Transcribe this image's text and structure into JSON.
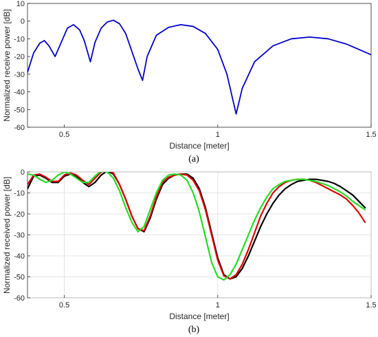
{
  "chart_data": [
    {
      "type": "line",
      "caption": "(a)",
      "xlabel": "Distance [meter]",
      "ylabel": "Normalized receive power [dB]",
      "xlim": [
        0.38,
        1.5
      ],
      "ylim": [
        -60,
        10
      ],
      "xticks": [
        0.5,
        1,
        1.5
      ],
      "xtick_labels": [
        "0.5",
        "1",
        "1.5"
      ],
      "yticks": [
        10,
        0,
        -10,
        -20,
        -30,
        -40,
        -50,
        -60
      ],
      "ytick_labels": [
        "10",
        "0",
        "-10",
        "-20",
        "-30",
        "-40",
        "-50",
        "-60"
      ],
      "grid": false,
      "series": [
        {
          "color": "#0000cc",
          "x": [
            0.38,
            0.4,
            0.42,
            0.435,
            0.45,
            0.47,
            0.49,
            0.51,
            0.53,
            0.55,
            0.565,
            0.575,
            0.585,
            0.6,
            0.62,
            0.64,
            0.66,
            0.68,
            0.7,
            0.72,
            0.74,
            0.755,
            0.77,
            0.8,
            0.84,
            0.88,
            0.92,
            0.96,
            1.0,
            1.03,
            1.05,
            1.06,
            1.08,
            1.12,
            1.18,
            1.24,
            1.3,
            1.36,
            1.42,
            1.5
          ],
          "y": [
            -29,
            -18,
            -12.5,
            -11,
            -14,
            -20,
            -12,
            -4,
            -2,
            -5,
            -11,
            -17,
            -23,
            -12,
            -4,
            -0.5,
            0.5,
            -1.5,
            -7,
            -17,
            -27,
            -33.5,
            -20,
            -8,
            -3.5,
            -2,
            -3,
            -7,
            -16,
            -30,
            -45,
            -52.5,
            -38,
            -23,
            -14,
            -10,
            -9,
            -10,
            -13,
            -19
          ]
        }
      ]
    },
    {
      "type": "line",
      "caption": "(b)",
      "xlabel": "Distance [meter]",
      "ylabel": "Normalized received power [dB]",
      "xlim": [
        0.38,
        1.5
      ],
      "ylim": [
        -60,
        0
      ],
      "xticks": [
        0.5,
        1,
        1.5
      ],
      "xtick_labels": [
        "0.5",
        "1",
        "1.5"
      ],
      "yticks": [
        0,
        -10,
        -20,
        -30,
        -40,
        -50,
        -60
      ],
      "ytick_labels": [
        "0",
        "-10",
        "-20",
        "-30",
        "-40",
        "-50",
        "-60"
      ],
      "grid": true,
      "series": [
        {
          "color": "#000000",
          "x": [
            0.38,
            0.4,
            0.42,
            0.44,
            0.46,
            0.48,
            0.5,
            0.52,
            0.54,
            0.56,
            0.58,
            0.6,
            0.62,
            0.64,
            0.66,
            0.68,
            0.7,
            0.72,
            0.74,
            0.76,
            0.78,
            0.8,
            0.82,
            0.84,
            0.86,
            0.88,
            0.9,
            0.92,
            0.94,
            0.96,
            0.98,
            1.0,
            1.02,
            1.04,
            1.06,
            1.08,
            1.1,
            1.12,
            1.14,
            1.16,
            1.18,
            1.2,
            1.22,
            1.24,
            1.26,
            1.28,
            1.3,
            1.32,
            1.34,
            1.36,
            1.38,
            1.4,
            1.42,
            1.44,
            1.46,
            1.48
          ],
          "y": [
            -8,
            -2,
            -1.5,
            -3,
            -5,
            -5,
            -2,
            -1,
            -2,
            -5,
            -7,
            -5,
            -1.5,
            0.5,
            -1,
            -6,
            -13,
            -21,
            -27,
            -28.5,
            -22,
            -13,
            -6,
            -3,
            -1.5,
            -1,
            -1,
            -3,
            -8,
            -17,
            -29,
            -41,
            -49,
            -51,
            -50,
            -46,
            -40,
            -33,
            -26,
            -20,
            -15,
            -11,
            -8,
            -6,
            -4.5,
            -4,
            -3.5,
            -3.5,
            -4,
            -4.5,
            -5.5,
            -7,
            -9,
            -11,
            -14,
            -17
          ]
        },
        {
          "color": "#e00000",
          "x": [
            0.38,
            0.4,
            0.42,
            0.44,
            0.46,
            0.48,
            0.5,
            0.52,
            0.54,
            0.56,
            0.58,
            0.6,
            0.62,
            0.64,
            0.66,
            0.68,
            0.7,
            0.72,
            0.74,
            0.76,
            0.78,
            0.8,
            0.82,
            0.84,
            0.86,
            0.88,
            0.9,
            0.92,
            0.94,
            0.96,
            0.98,
            1.0,
            1.02,
            1.04,
            1.06,
            1.08,
            1.1,
            1.12,
            1.14,
            1.16,
            1.18,
            1.2,
            1.22,
            1.24,
            1.26,
            1.28,
            1.3,
            1.32,
            1.34,
            1.36,
            1.38,
            1.4,
            1.42,
            1.44,
            1.46,
            1.48
          ],
          "y": [
            -6,
            -1.5,
            -1,
            -2.5,
            -4.5,
            -4.5,
            -1.5,
            -0.5,
            -1.5,
            -4,
            -6,
            -3,
            0,
            1,
            -0.5,
            -6,
            -13,
            -21,
            -27,
            -28,
            -21,
            -12,
            -5,
            -2.5,
            -1.5,
            -1,
            -1.5,
            -4,
            -9,
            -18,
            -30,
            -42,
            -49.5,
            -51,
            -49,
            -44,
            -37,
            -29,
            -21,
            -15,
            -10,
            -7,
            -5,
            -4,
            -3.5,
            -3.5,
            -4,
            -5,
            -6.5,
            -8,
            -9.5,
            -11,
            -13,
            -16,
            -19.5,
            -24
          ]
        },
        {
          "color": "#22dd22",
          "x": [
            0.38,
            0.4,
            0.42,
            0.44,
            0.46,
            0.48,
            0.5,
            0.52,
            0.54,
            0.56,
            0.58,
            0.6,
            0.62,
            0.64,
            0.66,
            0.68,
            0.7,
            0.72,
            0.74,
            0.76,
            0.78,
            0.8,
            0.82,
            0.84,
            0.86,
            0.88,
            0.9,
            0.92,
            0.94,
            0.96,
            0.98,
            1.0,
            1.02,
            1.04,
            1.06,
            1.08,
            1.1,
            1.12,
            1.14,
            1.16,
            1.18,
            1.2,
            1.22,
            1.24,
            1.26,
            1.28,
            1.3,
            1.32,
            1.34,
            1.36,
            1.38,
            1.4,
            1.42,
            1.44,
            1.46,
            1.48
          ],
          "y": [
            -1,
            -1.5,
            -3.5,
            -5,
            -4,
            -1.5,
            0,
            -1,
            -3,
            -5,
            -5,
            -2,
            0.5,
            0,
            -3,
            -9,
            -17,
            -24,
            -28.5,
            -26,
            -18,
            -10,
            -4,
            -1.5,
            -1,
            -1.5,
            -4,
            -10,
            -19,
            -31,
            -43,
            -50,
            -51.5,
            -49,
            -44,
            -37,
            -30,
            -23,
            -17,
            -12,
            -8,
            -6,
            -4.5,
            -4,
            -3.5,
            -3.5,
            -4,
            -4.5,
            -5.5,
            -6.5,
            -8,
            -9.5,
            -11.5,
            -14,
            -16,
            -18
          ]
        }
      ]
    }
  ]
}
